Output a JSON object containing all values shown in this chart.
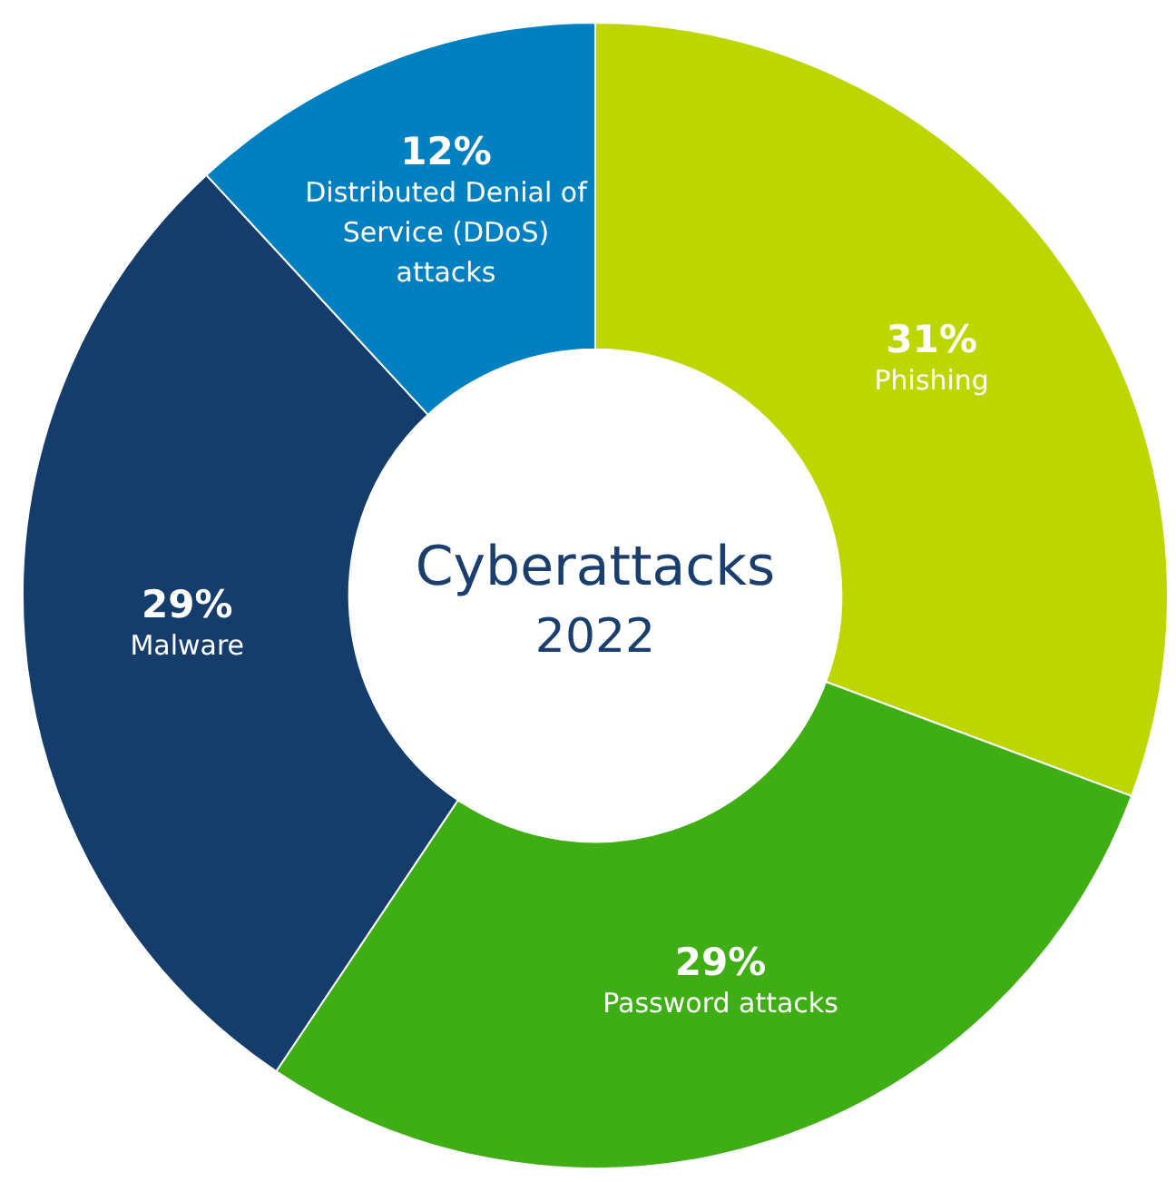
{
  "chart_data": {
    "type": "donut",
    "title": "Cyberattacks",
    "subtitle": "2022",
    "categories": [
      "Phishing",
      "Password attacks",
      "Malware",
      "Distributed Denial of Service (DDoS) attacks"
    ],
    "values": [
      31,
      29,
      29,
      12
    ],
    "value_labels": [
      "31%",
      "29%",
      "29%",
      "12%"
    ],
    "colors": [
      "#bed600",
      "#3fae15",
      "#143d6b",
      "#0080c0"
    ],
    "legend": false
  }
}
